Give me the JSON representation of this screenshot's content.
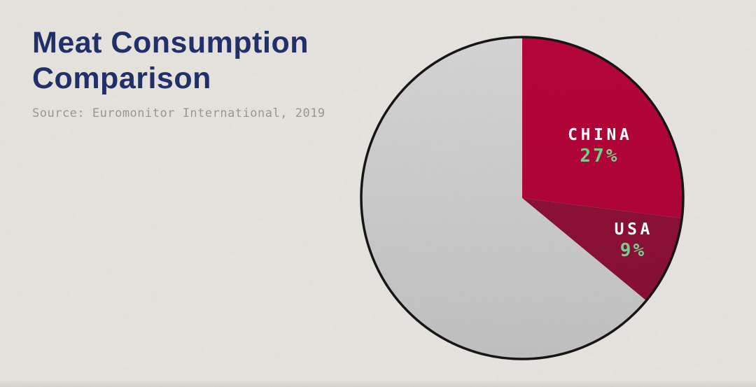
{
  "header": {
    "title": "Meat Consumption Comparison",
    "source": "Source: Euromonitor International, 2019"
  },
  "colors": {
    "background": "#e8e5e0",
    "title": "#22306b",
    "source_text": "#9c9995",
    "label_text": "#ffffff",
    "percent_text": "#79d28e",
    "outline": "#161616"
  },
  "chart_data": {
    "type": "pie",
    "title": "Meat Consumption Comparison",
    "source": "Source: Euromonitor International, 2019",
    "start_angle_deg": 0,
    "direction": "clockwise",
    "total": 100,
    "legend_position": "none",
    "slices": [
      {
        "label": "CHINA",
        "value": 27,
        "display": "27%",
        "color": "#b20437",
        "gradient": [
          "#b60539",
          "#a90334"
        ]
      },
      {
        "label": "USA",
        "value": 9,
        "display": "9%",
        "color": "#8e1037",
        "gradient": [
          "#921139",
          "#851033"
        ]
      },
      {
        "label": "",
        "value": 64,
        "display": "",
        "color": "#cccccc",
        "gradient": [
          "#d6d6d6",
          "#c1c1c1"
        ]
      }
    ]
  }
}
